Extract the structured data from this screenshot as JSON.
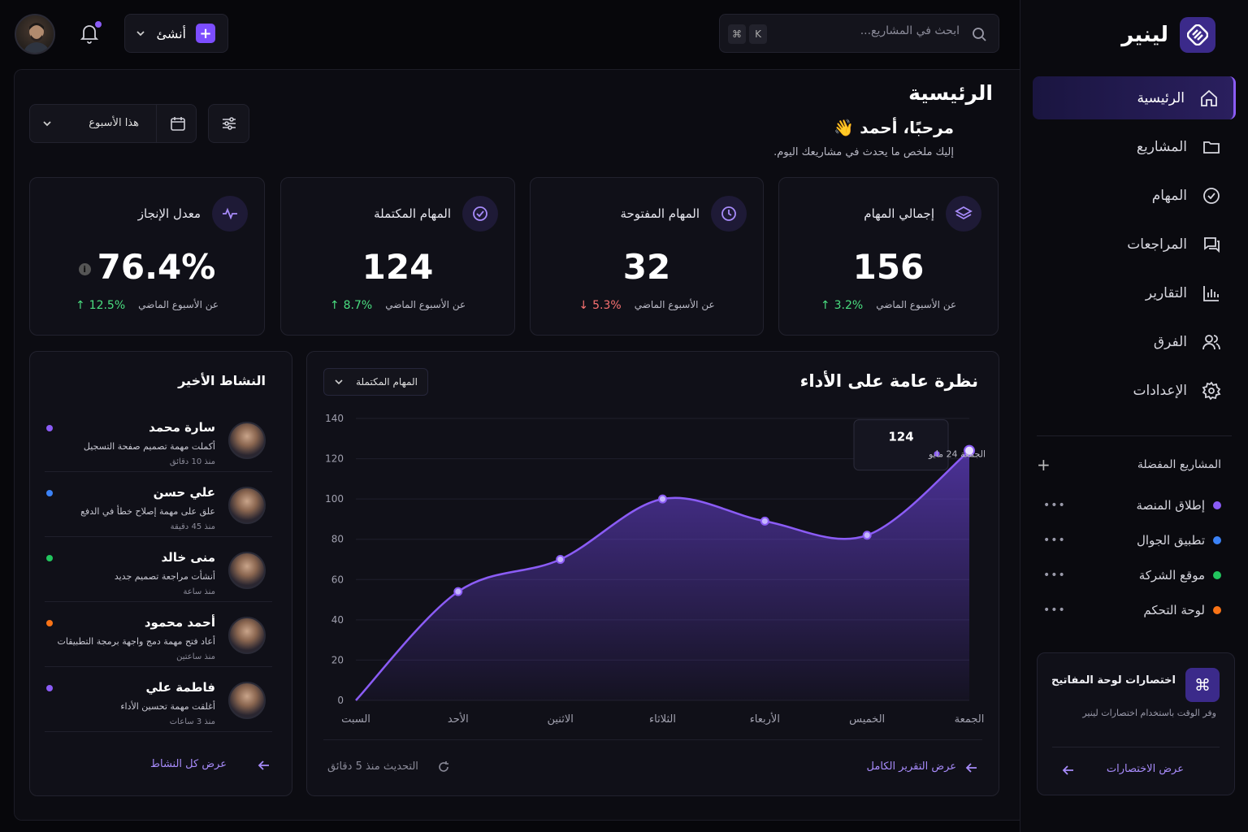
{
  "brand": {
    "name": "لينير"
  },
  "nav": [
    {
      "label": "الرئيسية",
      "icon": "home-icon",
      "active": true
    },
    {
      "label": "المشاريع",
      "icon": "folder-icon"
    },
    {
      "label": "المهام",
      "icon": "check-circle-icon"
    },
    {
      "label": "المراجعات",
      "icon": "chat-icon"
    },
    {
      "label": "التقارير",
      "icon": "bar-chart-icon"
    },
    {
      "label": "الفرق",
      "icon": "users-icon"
    },
    {
      "label": "الإعدادات",
      "icon": "gear-icon"
    }
  ],
  "favorites": {
    "title": "المشاريع المفضلة",
    "items": [
      {
        "label": "إطلاق المنصة",
        "color": "#8b5cf6"
      },
      {
        "label": "تطبيق الجوال",
        "color": "#3b82f6"
      },
      {
        "label": "موقع الشركة",
        "color": "#22c55e"
      },
      {
        "label": "لوحة التحكم",
        "color": "#f97316"
      }
    ]
  },
  "shortcuts_card": {
    "title": "اختصارات لوحة المفاتيح",
    "desc": "وفر الوقت باستخدام اختصارات لينير",
    "link": "عرض الاختصارات"
  },
  "topbar": {
    "new_label": "أنشئ",
    "search_placeholder": "ابحث في المشاريع...",
    "kbd": [
      "⌘",
      "K"
    ]
  },
  "page": {
    "title": "الرئيسية",
    "welcome": "مرحبًا، أحمد 👋",
    "welcome_sub": "إليك ملخص ما يحدث في مشاريعك اليوم.",
    "period": "هذا الأسبوع"
  },
  "stats": [
    {
      "title": "إجمالي المهام",
      "value": "156",
      "compare": "عن الأسبوع الماضي",
      "change": "3.2%",
      "dir": "up",
      "icon": "layers-icon"
    },
    {
      "title": "المهام المفتوحة",
      "value": "32",
      "compare": "عن الأسبوع الماضي",
      "change": "5.3%",
      "dir": "down",
      "icon": "clock-icon"
    },
    {
      "title": "المهام المكتملة",
      "value": "124",
      "compare": "عن الأسبوع الماضي",
      "change": "8.7%",
      "dir": "up",
      "icon": "check-circle-icon"
    },
    {
      "title": "معدل الإنجاز",
      "value": "76.4%",
      "compare": "عن الأسبوع الماضي",
      "change": "12.5%",
      "dir": "up",
      "icon": "activity-icon"
    }
  ],
  "chart": {
    "title": "نظرة عامة على الأداء",
    "select": "المهام المكتملة",
    "link": "عرض التقرير الكامل",
    "updated": "التحديث منذ 5 دقائق",
    "tooltip": {
      "value": "124",
      "label": "الجمعة 24 مايو"
    }
  },
  "chart_data": {
    "type": "area",
    "categories": [
      "السبت",
      "الأحد",
      "الاثنين",
      "الثلاثاء",
      "الأربعاء",
      "الخميس",
      "الجمعة"
    ],
    "values": [
      0,
      54,
      70,
      100,
      89,
      82,
      124
    ],
    "yticks": [
      0,
      20,
      40,
      60,
      80,
      100,
      120,
      140
    ],
    "ylim": [
      0,
      140
    ],
    "color": "#8b5cf6"
  },
  "activity": {
    "title": "النشاط الأخير",
    "link": "عرض كل النشاط",
    "items": [
      {
        "name": "سارة محمد",
        "desc": "أكملت مهمة تصميم صفحة التسجيل",
        "time": "منذ 10 دقائق",
        "color": "#8b5cf6"
      },
      {
        "name": "علي حسن",
        "desc": "علق على مهمة إصلاح خطأ في الدفع",
        "time": "منذ 45 دقيقة",
        "color": "#3b82f6"
      },
      {
        "name": "منى خالد",
        "desc": "أنشأت مراجعة تصميم جديد",
        "time": "منذ ساعة",
        "color": "#22c55e"
      },
      {
        "name": "أحمد محمود",
        "desc": "أعاد فتح مهمة دمج واجهة برمجة التطبيقات",
        "time": "منذ ساعتين",
        "color": "#f97316"
      },
      {
        "name": "فاطمة علي",
        "desc": "أغلقت مهمة تحسين الأداء",
        "time": "منذ 3 ساعات",
        "color": "#8b5cf6"
      }
    ]
  }
}
